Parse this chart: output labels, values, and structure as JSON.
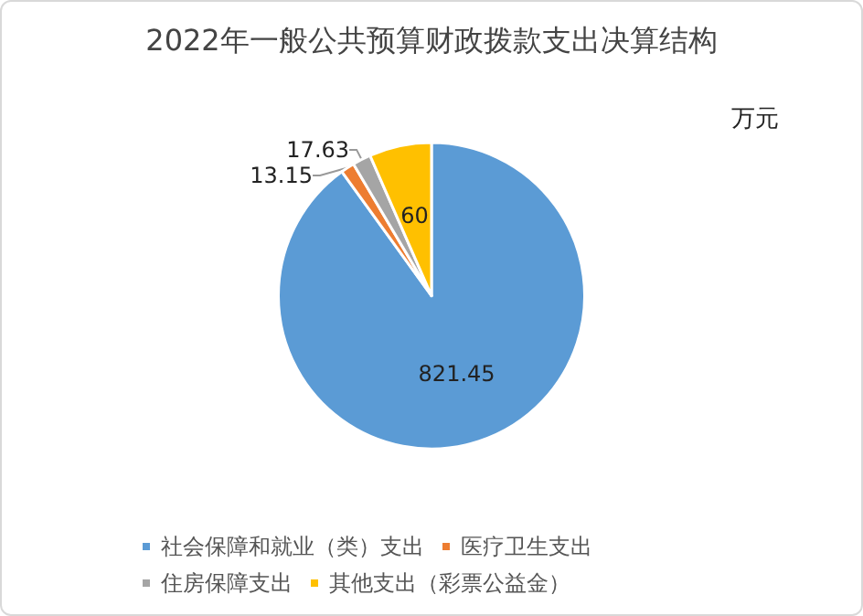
{
  "chart_data": {
    "type": "pie",
    "title": "2022年一般公共预算财政拨款支出决算结构",
    "categories": [
      "社会保障和就业（类）支出",
      "医疗卫生支出",
      "住房保障支出",
      "其他支出（彩票公益金）"
    ],
    "values": [
      821.45,
      13.15,
      17.63,
      60
    ],
    "colors": [
      "#5b9bd5",
      "#ed7d31",
      "#a5a5a5",
      "#ffc000"
    ],
    "annotations": [
      "万元"
    ],
    "data_labels": true,
    "legend": "bottom"
  }
}
